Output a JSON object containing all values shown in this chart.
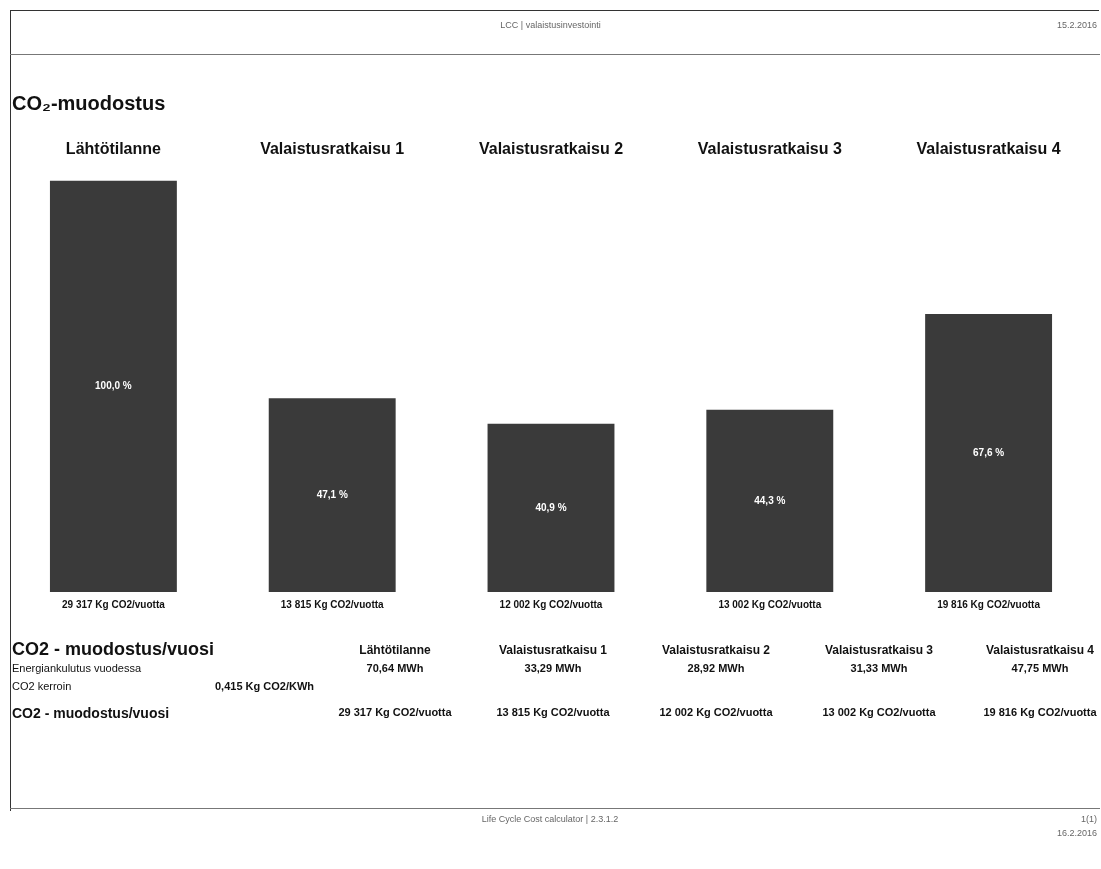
{
  "chart_data": {
    "type": "bar",
    "title": "CO₂-muodostus",
    "subtitle": "LCC | valaistusinvestointi",
    "categories": [
      "Lähtötilanne",
      "Valaistusratkaisu 1",
      "Valaistusratkaisu 2",
      "Valaistusratkaisu 3",
      "Valaistusratkaisu 4"
    ],
    "values": [
      29317,
      13815,
      12002,
      13002,
      19816
    ],
    "color": "#3a3a3a",
    "value_labels": [
      "29 317 Kg CO2/vuotta",
      "13 815 Kg CO2/vuotta",
      "12 002 Kg CO2/vuotta",
      "13 002 Kg CO2/vuotta",
      "19 816 Kg CO2/vuotta"
    ],
    "annotations": [
      "100,0 %",
      "47,1 %",
      "40,9 %",
      "44,3 %",
      "67,6 %",
      "CO2 - muodostus/vuosi",
      "Energiankulutus vuodessa",
      "70,64 MWh",
      "33,29 MWh",
      "28,92 MWh",
      "31,33 MWh",
      "47,75 MWh",
      "CO2 kerroin",
      "0,415 Kg CO2/KWh",
      "CO2 - muodostus/vuosi",
      "15.2.2016",
      "Life Cycle Cost calculator | 2.3.1.2",
      "1(1)",
      "16.2.2016"
    ],
    "grid": false,
    "legend": false
  }
}
